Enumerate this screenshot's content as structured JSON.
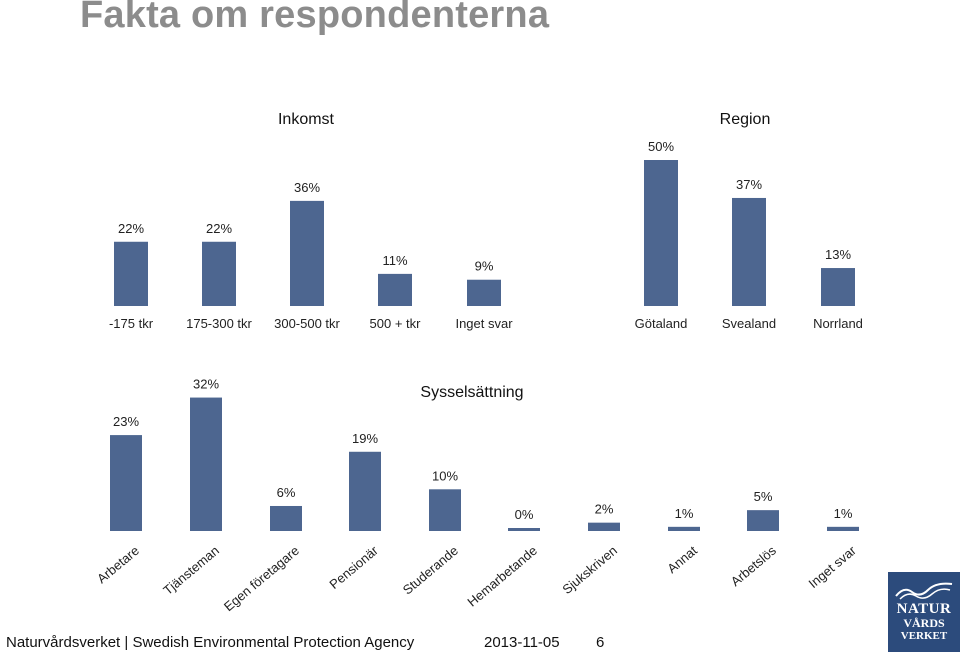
{
  "slide": {
    "title": "Fakta om respondenterna"
  },
  "footer": {
    "organization": "Naturvårdsverket | Swedish Environmental Protection Agency",
    "date": "2013-11-05",
    "page": "6"
  },
  "logo": {
    "line1": "NATUR",
    "line2": "VÅRDS",
    "line3": "VERKET"
  },
  "colors": {
    "bar": "#4d6690",
    "title": "#8c8c8c",
    "logo_bg": "#2c4b7c"
  },
  "chart_data": [
    {
      "type": "bar",
      "title": "Inkomst",
      "categories": [
        "-175 tkr",
        "175-300 tkr",
        "300-500 tkr",
        "500 + tkr",
        "Inget svar"
      ],
      "values": [
        22,
        22,
        36,
        11,
        9
      ],
      "labels": [
        "22%",
        "22%",
        "36%",
        "11%",
        "9%"
      ],
      "unit": "%"
    },
    {
      "type": "bar",
      "title": "Region",
      "categories": [
        "Götaland",
        "Svealand",
        "Norrland"
      ],
      "values": [
        50,
        37,
        13
      ],
      "labels": [
        "50%",
        "37%",
        "13%"
      ],
      "unit": "%"
    },
    {
      "type": "bar",
      "title": "Sysselsättning",
      "categories": [
        "Arbetare",
        "Tjänsteman",
        "Egen företagare",
        "Pensionär",
        "Studerande",
        "Hemarbetande",
        "Sjukskriven",
        "Annat",
        "Arbetslös",
        "Inget svar"
      ],
      "values": [
        23,
        32,
        6,
        19,
        10,
        0,
        2,
        1,
        5,
        1
      ],
      "labels": [
        "23%",
        "32%",
        "6%",
        "19%",
        "10%",
        "0%",
        "2%",
        "1%",
        "5%",
        "1%"
      ],
      "unit": "%"
    }
  ]
}
